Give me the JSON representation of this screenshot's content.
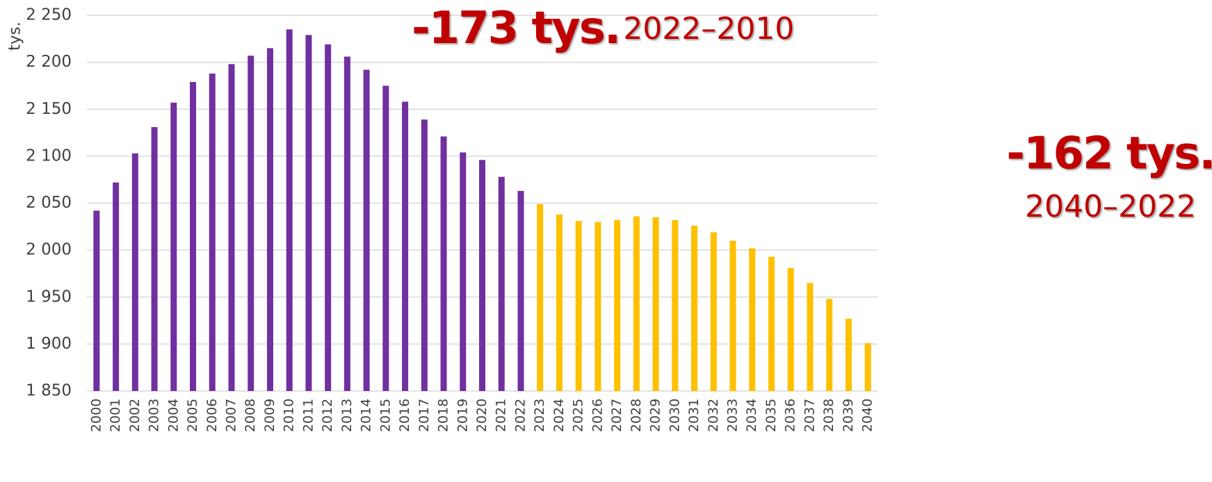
{
  "chart_data": {
    "type": "bar",
    "y_label": "tys.",
    "annotations": [
      {
        "big": "-173 tys.",
        "small": "2022–2010"
      },
      {
        "big": "-162 tys.",
        "small": "2040–2022"
      }
    ],
    "categories": [
      "2000",
      "2001",
      "2002",
      "2003",
      "2004",
      "2005",
      "2006",
      "2007",
      "2008",
      "2009",
      "2010",
      "2011",
      "2012",
      "2013",
      "2014",
      "2015",
      "2016",
      "2017",
      "2018",
      "2019",
      "2020",
      "2021",
      "2022",
      "2023",
      "2024",
      "2025",
      "2026",
      "2027",
      "2028",
      "2029",
      "2030",
      "2031",
      "2032",
      "2033",
      "2034",
      "2035",
      "2036",
      "2037",
      "2038",
      "2039",
      "2040"
    ],
    "values": [
      2042,
      2072,
      2103,
      2131,
      2157,
      2179,
      2188,
      2198,
      2207,
      2215,
      2235,
      2229,
      2219,
      2206,
      2192,
      2175,
      2158,
      2139,
      2121,
      2104,
      2096,
      2078,
      2063,
      2049,
      2038,
      2031,
      2030,
      2032,
      2036,
      2035,
      2032,
      2026,
      2019,
      2010,
      2002,
      1993,
      1981,
      1965,
      1948,
      1927,
      1901
    ],
    "colors": [
      "#7030a0",
      "#7030a0",
      "#7030a0",
      "#7030a0",
      "#7030a0",
      "#7030a0",
      "#7030a0",
      "#7030a0",
      "#7030a0",
      "#7030a0",
      "#7030a0",
      "#7030a0",
      "#7030a0",
      "#7030a0",
      "#7030a0",
      "#7030a0",
      "#7030a0",
      "#7030a0",
      "#7030a0",
      "#7030a0",
      "#7030a0",
      "#7030a0",
      "#7030a0",
      "#ffc000",
      "#ffc000",
      "#ffc000",
      "#ffc000",
      "#ffc000",
      "#ffc000",
      "#ffc000",
      "#ffc000",
      "#ffc000",
      "#ffc000",
      "#ffc000",
      "#ffc000",
      "#ffc000",
      "#ffc000",
      "#ffc000",
      "#ffc000",
      "#ffc000",
      "#ffc000"
    ],
    "annotation_color": "#c00000",
    "ylim": [
      1850,
      2250
    ],
    "yticks": [
      {
        "value": 1850,
        "label": "1 850"
      },
      {
        "value": 1900,
        "label": "1 900"
      },
      {
        "value": 1950,
        "label": "1 950"
      },
      {
        "value": 2000,
        "label": "2 000"
      },
      {
        "value": 2050,
        "label": "2 050"
      },
      {
        "value": 2100,
        "label": "2 100"
      },
      {
        "value": 2150,
        "label": "2 150"
      },
      {
        "value": 2200,
        "label": "2 200"
      },
      {
        "value": 2250,
        "label": "2 250"
      }
    ],
    "grid": true
  }
}
